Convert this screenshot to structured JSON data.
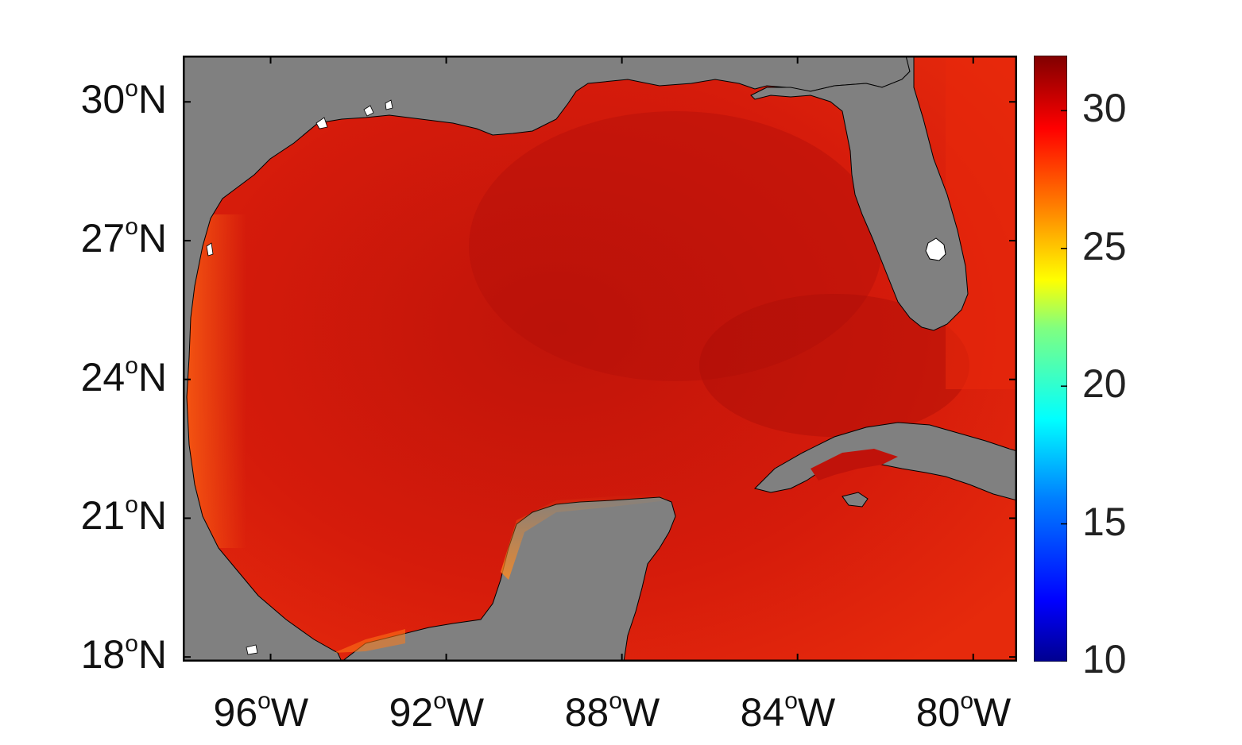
{
  "map": {
    "variable_unit": "",
    "latitude_ticks": [
      {
        "value": 30,
        "deg": "30",
        "sup": "o",
        "hem": "N"
      },
      {
        "value": 27,
        "deg": "27",
        "sup": "o",
        "hem": "N"
      },
      {
        "value": 24,
        "deg": "24",
        "sup": "o",
        "hem": "N"
      },
      {
        "value": 21,
        "deg": "21",
        "sup": "o",
        "hem": "N"
      },
      {
        "value": 18,
        "deg": "18",
        "sup": "o",
        "hem": "N"
      }
    ],
    "longitude_ticks": [
      {
        "value": -96,
        "deg": "96",
        "sup": "o",
        "hem": "W"
      },
      {
        "value": -92,
        "deg": "92",
        "sup": "o",
        "hem": "W"
      },
      {
        "value": -88,
        "deg": "88",
        "sup": "o",
        "hem": "W"
      },
      {
        "value": -84,
        "deg": "84",
        "sup": "o",
        "hem": "W"
      },
      {
        "value": -80,
        "deg": "80",
        "sup": "o",
        "hem": "W"
      }
    ],
    "colorbar": {
      "min": 10,
      "max": 32,
      "ticks": [
        "10",
        "15",
        "20",
        "25",
        "30"
      ],
      "colormap": "jet"
    },
    "colors": {
      "land": "#808080",
      "ocean_dominant": "#d81a0a",
      "ocean_warm": "#b50f08",
      "coastal_cool": "#ff5a10",
      "frame": "#000000"
    }
  }
}
